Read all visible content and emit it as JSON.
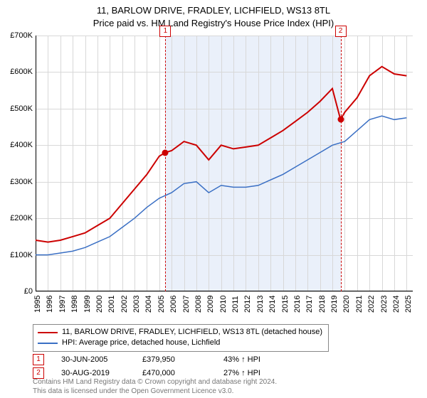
{
  "title": {
    "line1": "11, BARLOW DRIVE, FRADLEY, LICHFIELD, WS13 8TL",
    "line2": "Price paid vs. HM Land Registry's House Price Index (HPI)",
    "fontsize": 13
  },
  "chart": {
    "type": "line",
    "background_color": "#ffffff",
    "shade_color": "#eaf0fa",
    "grid_color": "#d8d8d8",
    "axis_color": "#000000",
    "xlim": [
      1995,
      2025.5
    ],
    "ylim": [
      0,
      700000
    ],
    "ytick_step": 100000,
    "y_ticks": [
      "£0",
      "£100K",
      "£200K",
      "£300K",
      "£400K",
      "£500K",
      "£600K",
      "£700K"
    ],
    "x_ticks": [
      1995,
      1996,
      1997,
      1998,
      1999,
      2000,
      2001,
      2002,
      2003,
      2004,
      2005,
      2006,
      2007,
      2008,
      2009,
      2010,
      2011,
      2012,
      2013,
      2014,
      2015,
      2016,
      2017,
      2018,
      2019,
      2020,
      2021,
      2022,
      2023,
      2024,
      2025
    ],
    "shade_range": [
      2005.5,
      2019.66
    ],
    "series": [
      {
        "name": "property",
        "label": "11, BARLOW DRIVE, FRADLEY, LICHFIELD, WS13 8TL (detached house)",
        "color": "#cc0000",
        "line_width": 2,
        "data": [
          [
            1995,
            140000
          ],
          [
            1996,
            135000
          ],
          [
            1997,
            140000
          ],
          [
            1998,
            150000
          ],
          [
            1999,
            160000
          ],
          [
            2000,
            180000
          ],
          [
            2001,
            200000
          ],
          [
            2002,
            240000
          ],
          [
            2003,
            280000
          ],
          [
            2004,
            320000
          ],
          [
            2005,
            370000
          ],
          [
            2005.5,
            379950
          ],
          [
            2006,
            385000
          ],
          [
            2007,
            410000
          ],
          [
            2008,
            400000
          ],
          [
            2009,
            360000
          ],
          [
            2010,
            400000
          ],
          [
            2011,
            390000
          ],
          [
            2012,
            395000
          ],
          [
            2013,
            400000
          ],
          [
            2014,
            420000
          ],
          [
            2015,
            440000
          ],
          [
            2016,
            465000
          ],
          [
            2017,
            490000
          ],
          [
            2018,
            520000
          ],
          [
            2019,
            555000
          ],
          [
            2019.66,
            470000
          ],
          [
            2020,
            490000
          ],
          [
            2021,
            530000
          ],
          [
            2022,
            590000
          ],
          [
            2023,
            615000
          ],
          [
            2024,
            595000
          ],
          [
            2025,
            590000
          ]
        ]
      },
      {
        "name": "hpi",
        "label": "HPI: Average price, detached house, Lichfield",
        "color": "#3a6fc4",
        "line_width": 1.5,
        "data": [
          [
            1995,
            100000
          ],
          [
            1996,
            100000
          ],
          [
            1997,
            105000
          ],
          [
            1998,
            110000
          ],
          [
            1999,
            120000
          ],
          [
            2000,
            135000
          ],
          [
            2001,
            150000
          ],
          [
            2002,
            175000
          ],
          [
            2003,
            200000
          ],
          [
            2004,
            230000
          ],
          [
            2005,
            255000
          ],
          [
            2006,
            270000
          ],
          [
            2007,
            295000
          ],
          [
            2008,
            300000
          ],
          [
            2009,
            270000
          ],
          [
            2010,
            290000
          ],
          [
            2011,
            285000
          ],
          [
            2012,
            285000
          ],
          [
            2013,
            290000
          ],
          [
            2014,
            305000
          ],
          [
            2015,
            320000
          ],
          [
            2016,
            340000
          ],
          [
            2017,
            360000
          ],
          [
            2018,
            380000
          ],
          [
            2019,
            400000
          ],
          [
            2020,
            410000
          ],
          [
            2021,
            440000
          ],
          [
            2022,
            470000
          ],
          [
            2023,
            480000
          ],
          [
            2024,
            470000
          ],
          [
            2025,
            475000
          ]
        ]
      }
    ],
    "markers": [
      {
        "n": "1",
        "x": 2005.5,
        "y": 379950,
        "color": "#cc0000"
      },
      {
        "n": "2",
        "x": 2019.66,
        "y": 470000,
        "color": "#cc0000"
      }
    ]
  },
  "sales": [
    {
      "n": "1",
      "date": "30-JUN-2005",
      "price": "£379,950",
      "delta": "43% ↑ HPI",
      "color": "#cc0000"
    },
    {
      "n": "2",
      "date": "30-AUG-2019",
      "price": "£470,000",
      "delta": "27% ↑ HPI",
      "color": "#cc0000"
    }
  ],
  "footer": {
    "line1": "Contains HM Land Registry data © Crown copyright and database right 2024.",
    "line2": "This data is licensed under the Open Government Licence v3.0."
  }
}
